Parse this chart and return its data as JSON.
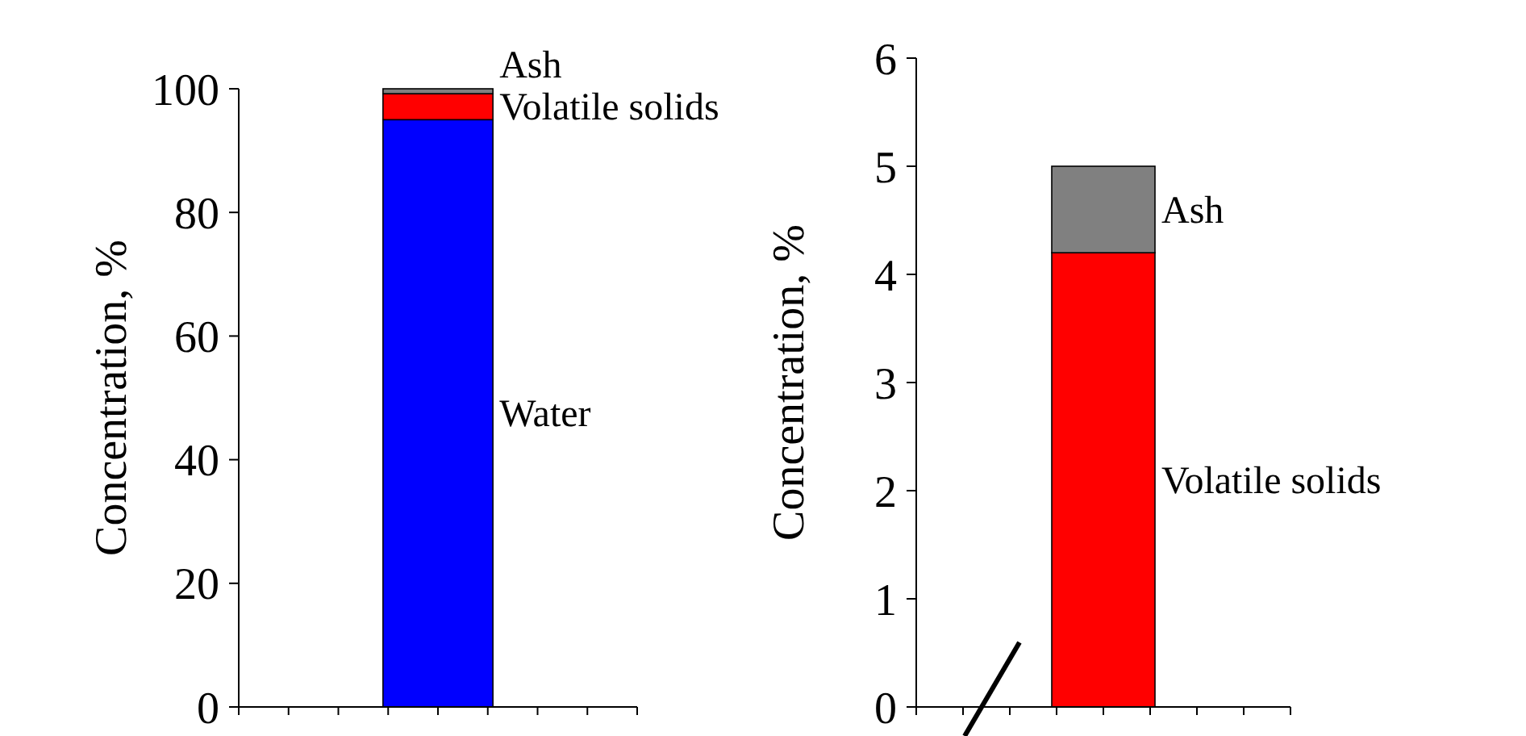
{
  "chart_data": [
    {
      "type": "bar",
      "stacked": true,
      "categories": [
        null
      ],
      "ylabel": "Concentration, %",
      "ylim": [
        0,
        100
      ],
      "yticks": [
        0,
        20,
        40,
        60,
        80,
        100
      ],
      "series": [
        {
          "name": "Water",
          "color": "#0000ff",
          "values": [
            95
          ]
        },
        {
          "name": "Volatile solids",
          "color": "#ff0000",
          "values": [
            4.2
          ]
        },
        {
          "name": "Ash",
          "color": "#808080",
          "values": [
            0.8
          ]
        }
      ]
    },
    {
      "type": "bar",
      "stacked": true,
      "categories": [
        null
      ],
      "ylabel": "Concentration, %",
      "ylim": [
        0,
        6
      ],
      "yticks": [
        0,
        1,
        2,
        3,
        4,
        5,
        6
      ],
      "series": [
        {
          "name": "Volatile solids",
          "color": "#ff0000",
          "values": [
            4.2
          ]
        },
        {
          "name": "Ash",
          "color": "#808080",
          "values": [
            0.8
          ]
        }
      ]
    }
  ]
}
